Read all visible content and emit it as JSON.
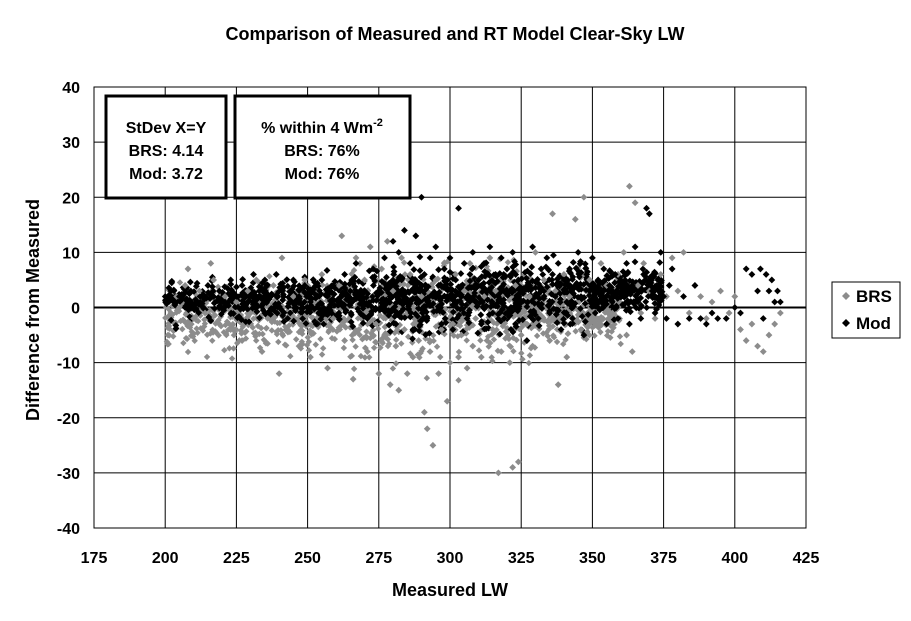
{
  "chart_data": {
    "type": "scatter",
    "title": "Comparison of Measured and RT Model Clear-Sky LW",
    "xlabel": "Measured LW",
    "ylabel": "Difference from Measured",
    "xlim": [
      175,
      425
    ],
    "ylim": [
      -40,
      40
    ],
    "xticks": [
      "175",
      "200",
      "225",
      "250",
      "275",
      "300",
      "325",
      "350",
      "375",
      "400",
      "425"
    ],
    "yticks": [
      "40",
      "30",
      "20",
      "10",
      "0",
      "-10",
      "-20",
      "-30",
      "-40"
    ],
    "grid": true,
    "legend_position": "right",
    "series": [
      {
        "name": "BRS",
        "color": "#8c8c8c",
        "marker": "diamond",
        "points": [
          [
            201,
            -5
          ],
          [
            202,
            -1
          ],
          [
            204,
            2
          ],
          [
            205,
            0
          ],
          [
            207,
            4
          ],
          [
            208,
            7
          ],
          [
            210,
            -2
          ],
          [
            212,
            3
          ],
          [
            214,
            -1
          ],
          [
            216,
            8
          ],
          [
            217,
            5
          ],
          [
            219,
            -3
          ],
          [
            221,
            2
          ],
          [
            223,
            -4
          ],
          [
            225,
            1
          ],
          [
            227,
            -6
          ],
          [
            229,
            3
          ],
          [
            230,
            -1
          ],
          [
            232,
            5
          ],
          [
            234,
            -8
          ],
          [
            236,
            -2
          ],
          [
            238,
            4
          ],
          [
            240,
            -12
          ],
          [
            241,
            9
          ],
          [
            243,
            -4
          ],
          [
            245,
            2
          ],
          [
            247,
            -7
          ],
          [
            249,
            5
          ],
          [
            251,
            -9
          ],
          [
            253,
            -3
          ],
          [
            255,
            6
          ],
          [
            257,
            -11
          ],
          [
            259,
            -2
          ],
          [
            261,
            4
          ],
          [
            262,
            13
          ],
          [
            263,
            -6
          ],
          [
            265,
            3
          ],
          [
            266,
            -13
          ],
          [
            267,
            9
          ],
          [
            268,
            -4
          ],
          [
            270,
            5
          ],
          [
            271,
            -8
          ],
          [
            272,
            11
          ],
          [
            274,
            -3
          ],
          [
            275,
            -12
          ],
          [
            276,
            7
          ],
          [
            277,
            -5
          ],
          [
            278,
            12
          ],
          [
            279,
            -14
          ],
          [
            280,
            3
          ],
          [
            281,
            -7
          ],
          [
            282,
            -15
          ],
          [
            283,
            9
          ],
          [
            284,
            -4
          ],
          [
            285,
            -12
          ],
          [
            286,
            6
          ],
          [
            287,
            -9
          ],
          [
            288,
            13
          ],
          [
            289,
            -6
          ],
          [
            290,
            2
          ],
          [
            291,
            -19
          ],
          [
            292,
            -22
          ],
          [
            293,
            -8
          ],
          [
            294,
            -25
          ],
          [
            295,
            5
          ],
          [
            296,
            -12
          ],
          [
            297,
            -4
          ],
          [
            298,
            8
          ],
          [
            299,
            -17
          ],
          [
            300,
            -10
          ],
          [
            301,
            -3
          ],
          [
            302,
            6
          ],
          [
            303,
            -9
          ],
          [
            304,
            -5
          ],
          [
            305,
            3
          ],
          [
            306,
            -11
          ],
          [
            307,
            8
          ],
          [
            308,
            -7
          ],
          [
            309,
            -2
          ],
          [
            310,
            5
          ],
          [
            311,
            -9
          ],
          [
            312,
            2
          ],
          [
            313,
            -6
          ],
          [
            314,
            9
          ],
          [
            315,
            -4
          ],
          [
            316,
            3
          ],
          [
            317,
            -30
          ],
          [
            318,
            -8
          ],
          [
            319,
            -2
          ],
          [
            320,
            7
          ],
          [
            321,
            -10
          ],
          [
            322,
            -29
          ],
          [
            323,
            4
          ],
          [
            324,
            -28
          ],
          [
            325,
            -5
          ],
          [
            326,
            8
          ],
          [
            327,
            -3
          ],
          [
            328,
            2
          ],
          [
            329,
            -7
          ],
          [
            330,
            10
          ],
          [
            331,
            -2
          ],
          [
            333,
            5
          ],
          [
            335,
            -6
          ],
          [
            336,
            17
          ],
          [
            337,
            3
          ],
          [
            338,
            -14
          ],
          [
            340,
            6
          ],
          [
            341,
            -9
          ],
          [
            342,
            2
          ],
          [
            344,
            16
          ],
          [
            346,
            -4
          ],
          [
            347,
            20
          ],
          [
            349,
            5
          ],
          [
            351,
            -2
          ],
          [
            353,
            8
          ],
          [
            355,
            4
          ],
          [
            357,
            -1
          ],
          [
            359,
            6
          ],
          [
            361,
            10
          ],
          [
            362,
            -5
          ],
          [
            363,
            22
          ],
          [
            364,
            -8
          ],
          [
            365,
            19
          ],
          [
            366,
            4
          ],
          [
            367,
            -1
          ],
          [
            368,
            8
          ],
          [
            370,
            3
          ],
          [
            372,
            -2
          ],
          [
            374,
            6
          ],
          [
            376,
            2
          ],
          [
            378,
            9
          ],
          [
            380,
            3
          ],
          [
            382,
            10
          ],
          [
            384,
            -1
          ],
          [
            386,
            4
          ],
          [
            388,
            2
          ],
          [
            390,
            -2
          ],
          [
            392,
            1
          ],
          [
            395,
            3
          ],
          [
            398,
            -1
          ],
          [
            400,
            2
          ],
          [
            402,
            -4
          ],
          [
            404,
            -6
          ],
          [
            406,
            -3
          ],
          [
            408,
            -7
          ],
          [
            410,
            -8
          ],
          [
            412,
            -5
          ],
          [
            414,
            -3
          ],
          [
            416,
            -1
          ]
        ]
      },
      {
        "name": "Mod",
        "color": "#000000",
        "marker": "diamond",
        "points": [
          [
            200,
            2
          ],
          [
            202,
            3
          ],
          [
            203,
            1
          ],
          [
            205,
            2
          ],
          [
            207,
            0
          ],
          [
            209,
            3
          ],
          [
            211,
            1
          ],
          [
            213,
            2
          ],
          [
            215,
            4
          ],
          [
            217,
            2
          ],
          [
            219,
            3
          ],
          [
            221,
            1
          ],
          [
            223,
            5
          ],
          [
            225,
            2
          ],
          [
            227,
            4
          ],
          [
            229,
            1
          ],
          [
            231,
            6
          ],
          [
            233,
            3
          ],
          [
            235,
            5
          ],
          [
            237,
            2
          ],
          [
            239,
            6
          ],
          [
            241,
            3
          ],
          [
            243,
            -2
          ],
          [
            245,
            5
          ],
          [
            247,
            2
          ],
          [
            249,
            4
          ],
          [
            251,
            1
          ],
          [
            253,
            -3
          ],
          [
            255,
            5
          ],
          [
            257,
            2
          ],
          [
            259,
            4
          ],
          [
            261,
            -1
          ],
          [
            263,
            6
          ],
          [
            265,
            3
          ],
          [
            267,
            8
          ],
          [
            269,
            2
          ],
          [
            271,
            -2
          ],
          [
            273,
            7
          ],
          [
            275,
            3
          ],
          [
            277,
            9
          ],
          [
            279,
            2
          ],
          [
            280,
            12
          ],
          [
            281,
            -3
          ],
          [
            282,
            10
          ],
          [
            283,
            5
          ],
          [
            284,
            14
          ],
          [
            285,
            1
          ],
          [
            286,
            8
          ],
          [
            287,
            -4
          ],
          [
            288,
            13
          ],
          [
            289,
            3
          ],
          [
            290,
            20
          ],
          [
            291,
            6
          ],
          [
            292,
            -2
          ],
          [
            293,
            9
          ],
          [
            294,
            2
          ],
          [
            295,
            11
          ],
          [
            296,
            4
          ],
          [
            297,
            -3
          ],
          [
            298,
            7
          ],
          [
            299,
            2
          ],
          [
            300,
            9
          ],
          [
            301,
            -4
          ],
          [
            302,
            5
          ],
          [
            303,
            18
          ],
          [
            304,
            2
          ],
          [
            305,
            8
          ],
          [
            306,
            -2
          ],
          [
            307,
            6
          ],
          [
            308,
            10
          ],
          [
            309,
            1
          ],
          [
            310,
            5
          ],
          [
            311,
            -3
          ],
          [
            312,
            8
          ],
          [
            313,
            3
          ],
          [
            314,
            11
          ],
          [
            315,
            -1
          ],
          [
            316,
            6
          ],
          [
            317,
            2
          ],
          [
            318,
            9
          ],
          [
            319,
            -2
          ],
          [
            320,
            7
          ],
          [
            321,
            3
          ],
          [
            322,
            10
          ],
          [
            323,
            -3
          ],
          [
            324,
            5
          ],
          [
            325,
            1
          ],
          [
            326,
            8
          ],
          [
            327,
            -6
          ],
          [
            328,
            4
          ],
          [
            329,
            11
          ],
          [
            330,
            2
          ],
          [
            331,
            -2
          ],
          [
            332,
            7
          ],
          [
            333,
            3
          ],
          [
            334,
            9
          ],
          [
            335,
            -1
          ],
          [
            336,
            6
          ],
          [
            337,
            2
          ],
          [
            338,
            8
          ],
          [
            339,
            -4
          ],
          [
            340,
            5
          ],
          [
            341,
            1
          ],
          [
            342,
            7
          ],
          [
            343,
            -2
          ],
          [
            344,
            4
          ],
          [
            345,
            10
          ],
          [
            346,
            2
          ],
          [
            347,
            -5
          ],
          [
            348,
            6
          ],
          [
            349,
            3
          ],
          [
            350,
            9
          ],
          [
            351,
            -1
          ],
          [
            352,
            5
          ],
          [
            353,
            2
          ],
          [
            354,
            7
          ],
          [
            355,
            -3
          ],
          [
            356,
            4
          ],
          [
            357,
            1
          ],
          [
            358,
            6
          ],
          [
            359,
            -2
          ],
          [
            360,
            5
          ],
          [
            361,
            2
          ],
          [
            362,
            8
          ],
          [
            363,
            -3
          ],
          [
            364,
            4
          ],
          [
            365,
            11
          ],
          [
            366,
            1
          ],
          [
            367,
            -2
          ],
          [
            368,
            6
          ],
          [
            369,
            18
          ],
          [
            370,
            17
          ],
          [
            371,
            3
          ],
          [
            372,
            -1
          ],
          [
            373,
            5
          ],
          [
            374,
            10
          ],
          [
            375,
            2
          ],
          [
            376,
            -2
          ],
          [
            377,
            4
          ],
          [
            378,
            7
          ],
          [
            380,
            -3
          ],
          [
            382,
            2
          ],
          [
            384,
            -2
          ],
          [
            386,
            4
          ],
          [
            388,
            -2
          ],
          [
            390,
            -3
          ],
          [
            392,
            -1
          ],
          [
            394,
            -2
          ],
          [
            397,
            -2
          ],
          [
            400,
            0
          ],
          [
            402,
            -1
          ],
          [
            404,
            7
          ],
          [
            406,
            6
          ],
          [
            408,
            3
          ],
          [
            409,
            7
          ],
          [
            410,
            -2
          ],
          [
            411,
            6
          ],
          [
            412,
            3
          ],
          [
            413,
            5
          ],
          [
            414,
            1
          ],
          [
            415,
            3
          ],
          [
            416,
            1
          ]
        ]
      }
    ],
    "annotations": [
      {
        "lines": [
          "StDev X=Y",
          "BRS: 4.14",
          "Mod: 3.72"
        ]
      },
      {
        "lines": [
          "% within 4 Wm",
          "BRS: 76%",
          "Mod: 76%"
        ],
        "superscript": "-2"
      }
    ]
  }
}
